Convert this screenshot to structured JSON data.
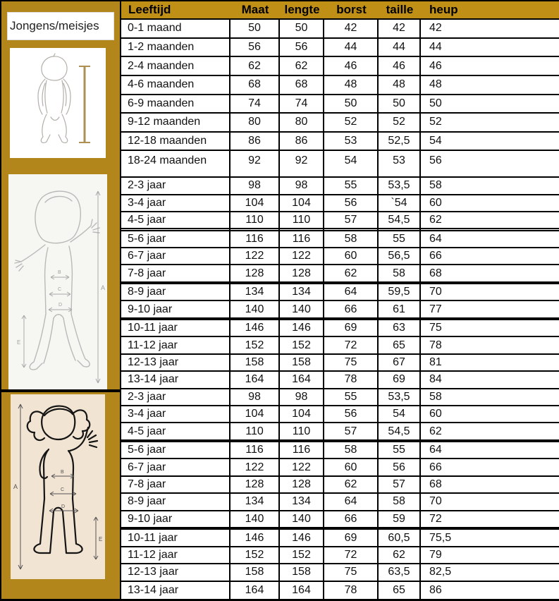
{
  "sidebar": {
    "label": "Jongens/meisjes",
    "figures": {
      "baby": {
        "name": "baby-height-figure"
      },
      "boy": {
        "name": "boy-measure-figure",
        "labels": {
          "a": "A",
          "b": "B",
          "c": "C",
          "d": "D",
          "e": "E"
        }
      },
      "girl": {
        "name": "girl-measure-figure",
        "labels": {
          "a": "A",
          "b": "B",
          "c": "C",
          "d": "D",
          "e": "E"
        }
      }
    }
  },
  "table": {
    "headers": [
      "Leeftijd",
      "Maat",
      "lengte",
      "borst",
      "taille",
      "heup"
    ],
    "sections": [
      {
        "id": "baby-maanden",
        "gaps_before": [],
        "rows": [
          [
            "0-1 maand",
            "50",
            "50",
            "42",
            "42",
            "42"
          ],
          [
            "1-2 maanden",
            "56",
            "56",
            "44",
            "44",
            "44"
          ],
          [
            "2-4 maanden",
            "62",
            "62",
            "46",
            "46",
            "46"
          ],
          [
            "4-6 maanden",
            "68",
            "68",
            "48",
            "48",
            "48"
          ],
          [
            "6-9 maanden",
            "74",
            "74",
            "50",
            "50",
            "50"
          ],
          [
            "9-12 maanden",
            "80",
            "80",
            "52",
            "52",
            "52"
          ],
          [
            "12-18 maanden",
            "86",
            "86",
            "53",
            "52,5",
            "54"
          ],
          [
            "18-24 maanden",
            "92",
            "92",
            "54",
            "53",
            "56"
          ]
        ]
      },
      {
        "id": "jongens-jaren",
        "gaps_before": [
          3,
          6,
          8
        ],
        "rows": [
          [
            "2-3 jaar",
            "98",
            "98",
            "55",
            "53,5",
            "58"
          ],
          [
            "3-4 jaar",
            "104",
            "104",
            "56",
            "`54",
            "60"
          ],
          [
            "4-5 jaar",
            "110",
            "110",
            "57",
            "54,5",
            "62"
          ],
          [
            "5-6 jaar",
            "116",
            "116",
            "58",
            "55",
            "64"
          ],
          [
            "6-7 jaar",
            "122",
            "122",
            "60",
            "56,5",
            "66"
          ],
          [
            "7-8 jaar",
            "128",
            "128",
            "62",
            "58",
            "68"
          ],
          [
            "8-9 jaar",
            "134",
            "134",
            "64",
            "59,5",
            "70"
          ],
          [
            "9-10 jaar",
            "140",
            "140",
            "66",
            "61",
            "77"
          ],
          [
            "10-11 jaar",
            "146",
            "146",
            "69",
            "63",
            "75"
          ],
          [
            "11-12 jaar",
            "152",
            "152",
            "72",
            "65",
            "78"
          ],
          [
            "12-13 jaar",
            "158",
            "158",
            "75",
            "67",
            "81"
          ],
          [
            "13-14 jaar",
            "164",
            "164",
            "78",
            "69",
            "84"
          ]
        ]
      },
      {
        "id": "meisjes-jaren",
        "gaps_before": [
          3,
          8
        ],
        "rows": [
          [
            "2-3 jaar",
            "98",
            "98",
            "55",
            "53,5",
            "58"
          ],
          [
            "3-4 jaar",
            "104",
            "104",
            "56",
            "54",
            "60"
          ],
          [
            "4-5 jaar",
            "110",
            "110",
            "57",
            "54,5",
            "62"
          ],
          [
            "5-6 jaar",
            "116",
            "116",
            "58",
            "55",
            "64"
          ],
          [
            "6-7 jaar",
            "122",
            "122",
            "60",
            "56",
            "66"
          ],
          [
            "7-8 jaar",
            "128",
            "128",
            "62",
            "57",
            "68"
          ],
          [
            "8-9 jaar",
            "134",
            "134",
            "64",
            "58",
            "70"
          ],
          [
            "9-10 jaar",
            "140",
            "140",
            "66",
            "59",
            "72"
          ],
          [
            "10-11 jaar",
            "146",
            "146",
            "69",
            "60,5",
            "75,5"
          ],
          [
            "11-12 jaar",
            "152",
            "152",
            "72",
            "62",
            "79"
          ],
          [
            "12-13 jaar",
            "158",
            "158",
            "75",
            "63,5",
            "82,5"
          ],
          [
            "13-14 jaar",
            "164",
            "164",
            "78",
            "65",
            "86"
          ]
        ]
      }
    ]
  },
  "colors": {
    "gold_header": "#C09016",
    "gold_sidebar": "#B2861A",
    "girl_panel_cream": "#F2E4D3",
    "border_black": "#000000"
  }
}
